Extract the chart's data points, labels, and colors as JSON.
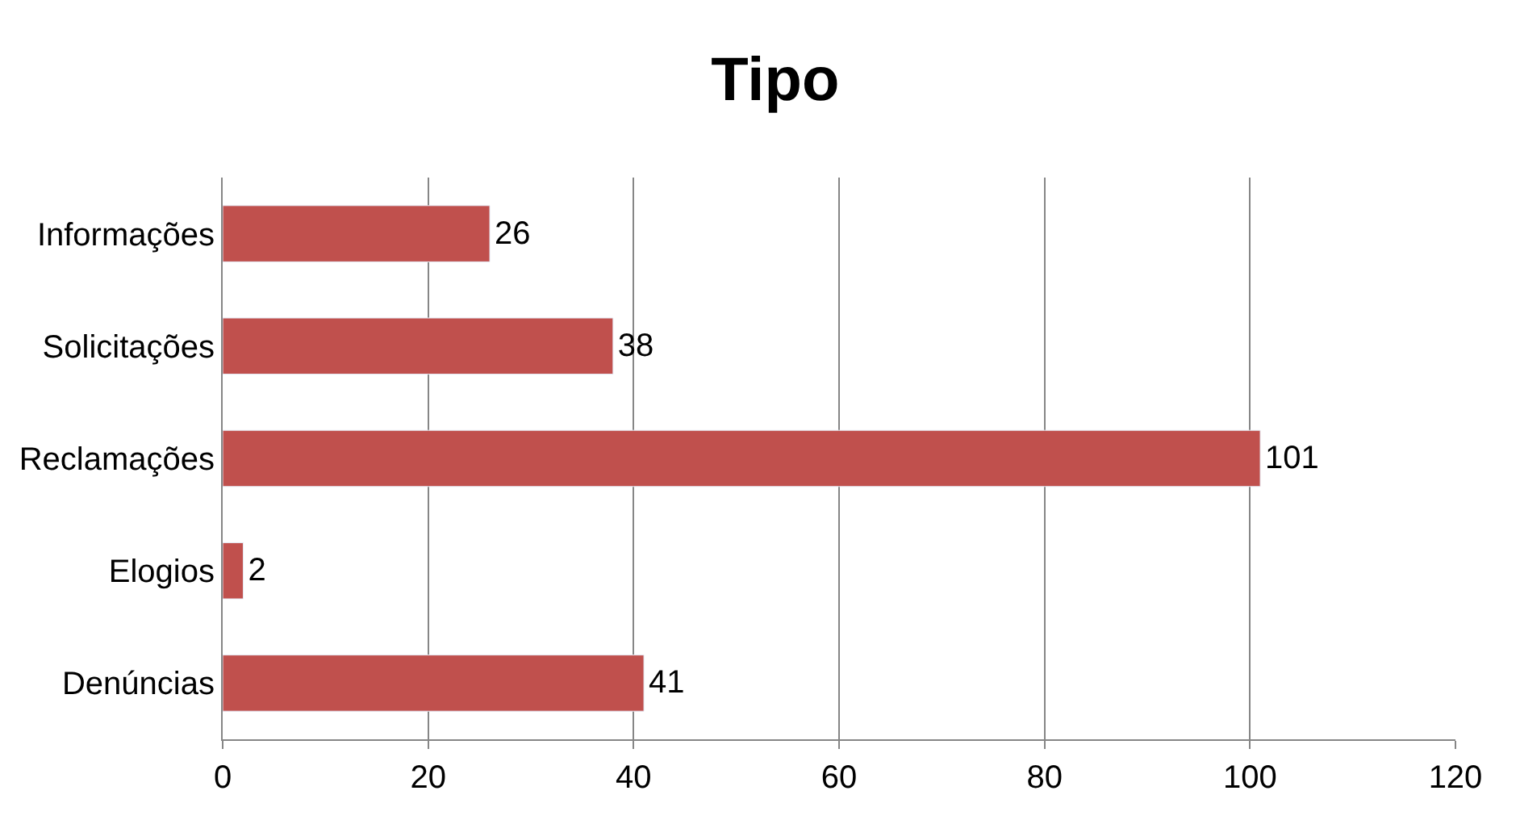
{
  "chart_data": {
    "type": "bar",
    "title": "Tipo",
    "orientation": "horizontal",
    "categories": [
      "Informações",
      "Solicitações",
      "Reclamações",
      "Elogios",
      "Denúncias"
    ],
    "values": [
      26,
      38,
      101,
      2,
      41
    ],
    "color": "#c0504d",
    "xlim": [
      0,
      120
    ],
    "xticks": [
      0,
      20,
      40,
      60,
      80,
      100,
      120
    ],
    "grid": "x",
    "data_labels": true,
    "legend": false
  }
}
